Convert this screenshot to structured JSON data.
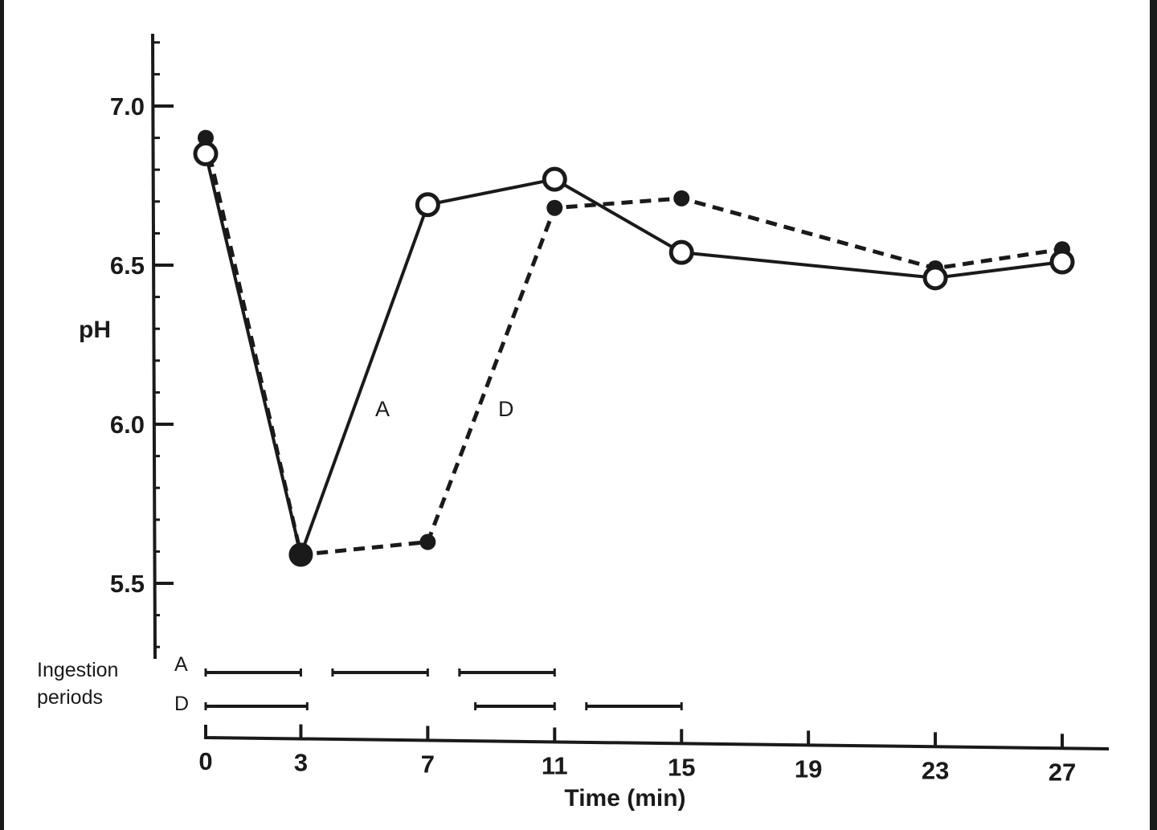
{
  "chart_data": {
    "type": "line",
    "title": "",
    "xlabel": "Time (min)",
    "ylabel": "pH",
    "x_ticks": [
      0,
      3,
      7,
      11,
      15,
      19,
      23,
      27
    ],
    "x_tick_labels": [
      "0",
      "3",
      "7",
      "11",
      "15",
      "19",
      "23",
      "27"
    ],
    "y_ticks": [
      5.5,
      6.0,
      6.5,
      7.0
    ],
    "y_tick_labels": [
      "5.5",
      "6.0",
      "6.5",
      "7.0"
    ],
    "ylim": [
      5.3,
      7.23
    ],
    "xlim": [
      0,
      28.5
    ],
    "grid": false,
    "legend": "inline labels on lines",
    "series": [
      {
        "name": "A",
        "style": "solid line, open circles",
        "x": [
          0,
          3,
          7,
          11,
          15,
          23,
          27
        ],
        "values": [
          6.85,
          5.59,
          6.69,
          6.77,
          6.54,
          6.46,
          6.51
        ]
      },
      {
        "name": "D",
        "style": "dashed line, filled circles",
        "x": [
          0,
          3,
          7,
          11,
          15,
          23,
          27
        ],
        "values": [
          6.9,
          5.59,
          5.63,
          6.68,
          6.71,
          6.49,
          6.55
        ]
      }
    ],
    "annotations": [
      {
        "text": "A",
        "near": "series A rising segment (3–7 min)"
      },
      {
        "text": "D",
        "near": "series D rising segment (7–11 min)"
      }
    ],
    "ingestion_periods": {
      "label_line1": "Ingestion",
      "label_line2": "periods",
      "rows": [
        {
          "name": "A",
          "intervals": [
            [
              0,
              3
            ],
            [
              4,
              7
            ],
            [
              8,
              11
            ]
          ]
        },
        {
          "name": "D",
          "intervals": [
            [
              0,
              3.2
            ],
            [
              8.5,
              11
            ],
            [
              12,
              15
            ]
          ]
        }
      ]
    }
  }
}
